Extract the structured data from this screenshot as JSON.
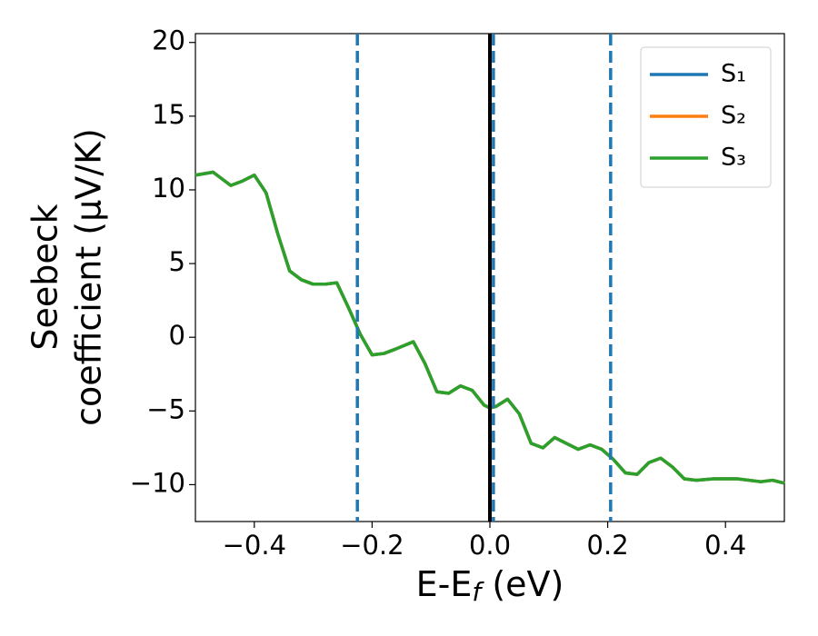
{
  "chart_data": {
    "type": "line",
    "y_label_lines": [
      "Seebeck",
      "coefficient  (μV/K)"
    ],
    "x_label": {
      "main": "E-E",
      "sub": "f",
      "unit": " (eV)"
    },
    "x": [
      -0.5,
      -0.47,
      -0.44,
      -0.42,
      -0.4,
      -0.38,
      -0.36,
      -0.34,
      -0.32,
      -0.3,
      -0.28,
      -0.26,
      -0.24,
      -0.22,
      -0.2,
      -0.18,
      -0.16,
      -0.13,
      -0.11,
      -0.09,
      -0.07,
      -0.05,
      -0.03,
      -0.01,
      0.0,
      0.01,
      0.03,
      0.05,
      0.07,
      0.09,
      0.11,
      0.13,
      0.15,
      0.17,
      0.19,
      0.21,
      0.23,
      0.25,
      0.27,
      0.29,
      0.31,
      0.33,
      0.35,
      0.38,
      0.42,
      0.44,
      0.46,
      0.48,
      0.5
    ],
    "series": [
      {
        "name": "S₁",
        "color": "#1f77b4",
        "values": [
          11.0,
          11.2,
          10.3,
          10.6,
          11.0,
          9.8,
          7.0,
          4.5,
          3.9,
          3.6,
          3.6,
          3.7,
          2.0,
          0.2,
          -1.2,
          -1.1,
          -0.8,
          -0.3,
          -1.8,
          -3.7,
          -3.8,
          -3.3,
          -3.6,
          -4.6,
          -4.8,
          -4.7,
          -4.2,
          -5.2,
          -7.2,
          -7.5,
          -6.8,
          -7.2,
          -7.6,
          -7.3,
          -7.6,
          -8.3,
          -9.2,
          -9.3,
          -8.5,
          -8.2,
          -8.8,
          -9.6,
          -9.7,
          -9.6,
          -9.6,
          -9.7,
          -9.8,
          -9.7,
          -9.9
        ]
      },
      {
        "name": "S₂",
        "color": "#ff7f0e",
        "values": [
          11.0,
          11.2,
          10.3,
          10.6,
          11.0,
          9.8,
          7.0,
          4.5,
          3.9,
          3.6,
          3.6,
          3.7,
          2.0,
          0.2,
          -1.2,
          -1.1,
          -0.8,
          -0.3,
          -1.8,
          -3.7,
          -3.8,
          -3.3,
          -3.6,
          -4.6,
          -4.8,
          -4.7,
          -4.2,
          -5.2,
          -7.2,
          -7.5,
          -6.8,
          -7.2,
          -7.6,
          -7.3,
          -7.6,
          -8.3,
          -9.2,
          -9.3,
          -8.5,
          -8.2,
          -8.8,
          -9.6,
          -9.7,
          -9.6,
          -9.6,
          -9.7,
          -9.8,
          -9.7,
          -9.9
        ]
      },
      {
        "name": "S₃",
        "color": "#2ca02c",
        "values": [
          11.0,
          11.2,
          10.3,
          10.6,
          11.0,
          9.8,
          7.0,
          4.5,
          3.9,
          3.6,
          3.6,
          3.7,
          2.0,
          0.2,
          -1.2,
          -1.1,
          -0.8,
          -0.3,
          -1.8,
          -3.7,
          -3.8,
          -3.3,
          -3.6,
          -4.6,
          -4.8,
          -4.7,
          -4.2,
          -5.2,
          -7.2,
          -7.5,
          -6.8,
          -7.2,
          -7.6,
          -7.3,
          -7.6,
          -8.3,
          -9.2,
          -9.3,
          -8.5,
          -8.2,
          -8.8,
          -9.6,
          -9.7,
          -9.6,
          -9.6,
          -9.7,
          -9.8,
          -9.7,
          -9.9
        ]
      }
    ],
    "vlines": [
      {
        "x": 0.0,
        "style": "solid",
        "color": "#000000"
      },
      {
        "x": -0.225,
        "style": "dashed",
        "color": "#1f77b4"
      },
      {
        "x": 0.006,
        "style": "dashed",
        "color": "#1f77b4"
      },
      {
        "x": 0.205,
        "style": "dashed",
        "color": "#1f77b4"
      }
    ],
    "xlim": [
      -0.5,
      0.5
    ],
    "xticks": [
      {
        "value": -0.4,
        "label": "−0.4"
      },
      {
        "value": -0.2,
        "label": "−0.2"
      },
      {
        "value": 0.0,
        "label": "0.0"
      },
      {
        "value": 0.2,
        "label": "0.2"
      },
      {
        "value": 0.4,
        "label": "0.4"
      }
    ],
    "ylim": [
      -12.5,
      20.6
    ],
    "yticks": [
      {
        "value": -10,
        "label": "−10"
      },
      {
        "value": -5,
        "label": "−5"
      },
      0,
      5,
      10,
      15,
      20
    ],
    "grid": false,
    "legend": "upper right"
  }
}
